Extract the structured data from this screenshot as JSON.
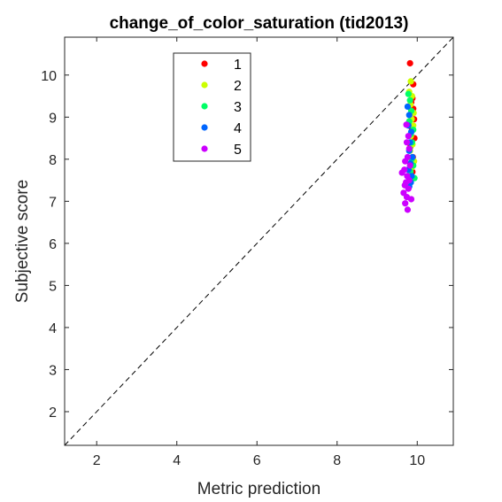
{
  "chart_data": {
    "type": "scatter",
    "title": "change_of_color_saturation (tid2013)",
    "xlabel": "Metric prediction",
    "ylabel": "Subjective score",
    "xlim": [
      1.2,
      10.9
    ],
    "ylim": [
      1.2,
      10.9
    ],
    "xticks": [
      2,
      4,
      6,
      8,
      10
    ],
    "yticks": [
      2,
      3,
      4,
      5,
      6,
      7,
      8,
      9,
      10
    ],
    "grid": false,
    "legend_position": "top-left",
    "reference_line": "y = x (dashed)",
    "series": [
      {
        "name": "1",
        "color": "#ff0000",
        "points": [
          [
            9.82,
            10.28
          ],
          [
            9.9,
            9.78
          ],
          [
            9.88,
            9.45
          ],
          [
            9.85,
            9.35
          ],
          [
            9.9,
            9.2
          ],
          [
            9.92,
            8.95
          ],
          [
            9.86,
            8.75
          ],
          [
            9.93,
            8.5
          ],
          [
            9.83,
            8.3
          ],
          [
            9.89,
            8.05
          ],
          [
            9.84,
            7.9
          ],
          [
            9.88,
            7.7
          ]
        ]
      },
      {
        "name": "2",
        "color": "#ccff00",
        "points": [
          [
            9.84,
            9.85
          ],
          [
            9.8,
            9.6
          ],
          [
            9.87,
            9.5
          ],
          [
            9.83,
            9.3
          ],
          [
            9.91,
            9.1
          ],
          [
            9.86,
            8.95
          ],
          [
            9.9,
            8.8
          ],
          [
            9.84,
            8.55
          ],
          [
            9.88,
            8.35
          ],
          [
            9.82,
            8.2
          ],
          [
            9.92,
            7.95
          ],
          [
            9.86,
            7.8
          ]
        ]
      },
      {
        "name": "3",
        "color": "#00ff66",
        "points": [
          [
            9.78,
            9.55
          ],
          [
            9.82,
            9.4
          ],
          [
            9.85,
            9.15
          ],
          [
            9.8,
            8.9
          ],
          [
            9.9,
            8.7
          ],
          [
            9.84,
            8.6
          ],
          [
            9.87,
            8.4
          ],
          [
            9.81,
            8.25
          ],
          [
            9.86,
            8.0
          ],
          [
            9.9,
            7.85
          ],
          [
            9.83,
            7.7
          ],
          [
            9.93,
            7.55
          ]
        ]
      },
      {
        "name": "4",
        "color": "#0066ff",
        "points": [
          [
            9.76,
            9.25
          ],
          [
            9.8,
            9.05
          ],
          [
            9.78,
            8.8
          ],
          [
            9.85,
            8.65
          ],
          [
            9.82,
            8.4
          ],
          [
            9.8,
            8.2
          ],
          [
            9.88,
            8.05
          ],
          [
            9.83,
            7.9
          ],
          [
            9.78,
            7.75
          ],
          [
            9.86,
            7.6
          ],
          [
            9.84,
            7.45
          ],
          [
            9.8,
            7.35
          ]
        ]
      },
      {
        "name": "5",
        "color": "#cc00ff",
        "points": [
          [
            9.73,
            8.82
          ],
          [
            9.78,
            8.55
          ],
          [
            9.74,
            8.4
          ],
          [
            9.8,
            8.25
          ],
          [
            9.76,
            8.05
          ],
          [
            9.7,
            7.95
          ],
          [
            9.82,
            7.85
          ],
          [
            9.68,
            7.75
          ],
          [
            9.75,
            7.6
          ],
          [
            9.62,
            7.68
          ],
          [
            9.72,
            7.45
          ],
          [
            9.78,
            7.3
          ],
          [
            9.66,
            7.2
          ],
          [
            9.74,
            7.1
          ],
          [
            9.85,
            7.05
          ],
          [
            9.7,
            6.95
          ],
          [
            9.76,
            6.8
          ],
          [
            9.8,
            7.5
          ],
          [
            9.69,
            7.38
          ]
        ]
      }
    ]
  }
}
